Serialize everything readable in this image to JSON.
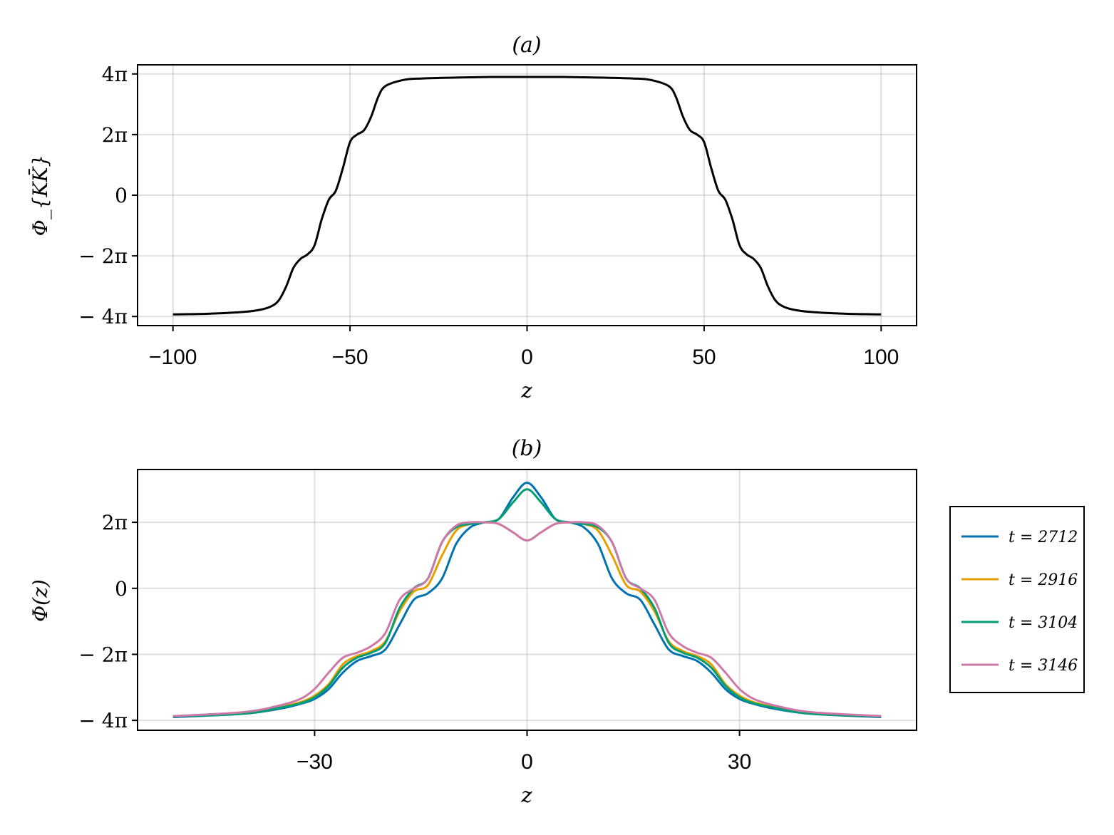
{
  "chart_data": [
    {
      "type": "line",
      "title": "(a)",
      "xlabel": "z",
      "ylabel": "Φ_{KK̄}",
      "xlim": [
        -110,
        110
      ],
      "ylim": [
        -4.3,
        4.3
      ],
      "ylim_unit": "π",
      "x_ticks": [
        {
          "value": -100,
          "label": "−100"
        },
        {
          "value": -50,
          "label": "−50"
        },
        {
          "value": 0,
          "label": "0"
        },
        {
          "value": 50,
          "label": "50"
        },
        {
          "value": 100,
          "label": "100"
        }
      ],
      "y_ticks": [
        {
          "value": 4,
          "label": "4π"
        },
        {
          "value": 2,
          "label": "2π"
        },
        {
          "value": 0,
          "label": "0"
        },
        {
          "value": -2,
          "label": "− 2π"
        },
        {
          "value": -4,
          "label": "− 4π"
        }
      ],
      "grid": true,
      "series": [
        {
          "color": "#000000",
          "x": [
            -100,
            -90,
            -80,
            -75,
            -72,
            -70,
            -68,
            -66,
            -64,
            -62,
            -60,
            -58,
            -56,
            -54,
            -52,
            -50,
            -48,
            -46,
            -44,
            -42,
            -40,
            -35,
            -30,
            -20,
            -10,
            0,
            10,
            20,
            30,
            35,
            40,
            42,
            44,
            46,
            48,
            50,
            52,
            54,
            56,
            58,
            60,
            62,
            64,
            66,
            68,
            70,
            72,
            75,
            80,
            90,
            100
          ],
          "y": [
            -3.93,
            -3.91,
            -3.85,
            -3.77,
            -3.65,
            -3.45,
            -3.0,
            -2.4,
            -2.1,
            -1.95,
            -1.65,
            -0.8,
            -0.15,
            0.15,
            0.9,
            1.75,
            2.0,
            2.15,
            2.6,
            3.25,
            3.6,
            3.8,
            3.85,
            3.88,
            3.9,
            3.9,
            3.9,
            3.88,
            3.85,
            3.8,
            3.6,
            3.25,
            2.6,
            2.15,
            2.0,
            1.75,
            0.9,
            0.15,
            -0.15,
            -0.8,
            -1.65,
            -1.95,
            -2.1,
            -2.4,
            -3.0,
            -3.45,
            -3.65,
            -3.77,
            -3.85,
            -3.91,
            -3.93
          ]
        }
      ]
    },
    {
      "type": "line",
      "title": "(b)",
      "xlabel": "z",
      "ylabel": "Φ(z)",
      "xlim": [
        -55,
        55
      ],
      "ylim": [
        -4.3,
        3.6
      ],
      "ylim_unit": "π",
      "x_ticks": [
        {
          "value": -30,
          "label": "−30"
        },
        {
          "value": 0,
          "label": "0"
        },
        {
          "value": 30,
          "label": "30"
        }
      ],
      "y_ticks": [
        {
          "value": 2,
          "label": "2π"
        },
        {
          "value": 0,
          "label": "0"
        },
        {
          "value": -2,
          "label": "− 2π"
        },
        {
          "value": -4,
          "label": "− 4π"
        }
      ],
      "grid": true,
      "legend": "right",
      "series": [
        {
          "name": "t = 2712",
          "color": "#0072B2",
          "x": [
            -50,
            -40,
            -35,
            -32,
            -30,
            -28,
            -26,
            -24,
            -22,
            -20,
            -18,
            -16,
            -14,
            -12,
            -10,
            -8,
            -6,
            -4,
            -2,
            0,
            2,
            4,
            6,
            8,
            10,
            12,
            14,
            16,
            18,
            20,
            22,
            24,
            26,
            28,
            30,
            32,
            35,
            40,
            50
          ],
          "y": [
            -3.9,
            -3.8,
            -3.65,
            -3.5,
            -3.35,
            -3.05,
            -2.55,
            -2.2,
            -2.05,
            -1.85,
            -1.1,
            -0.35,
            -0.15,
            0.3,
            1.35,
            1.85,
            2.0,
            2.1,
            2.75,
            3.2,
            2.75,
            2.1,
            2.0,
            1.85,
            1.35,
            0.3,
            -0.15,
            -0.35,
            -1.1,
            -1.85,
            -2.05,
            -2.2,
            -2.55,
            -3.05,
            -3.35,
            -3.5,
            -3.65,
            -3.8,
            -3.9
          ]
        },
        {
          "name": "t = 2916",
          "color": "#E69F00",
          "x": [
            -50,
            -40,
            -35,
            -32,
            -30,
            -28,
            -26,
            -24,
            -22,
            -20,
            -18,
            -16,
            -14,
            -12,
            -10,
            -8,
            -6,
            -4,
            -2,
            0,
            2,
            4,
            6,
            8,
            10,
            12,
            14,
            16,
            18,
            20,
            22,
            24,
            26,
            28,
            30,
            32,
            35,
            40,
            50
          ],
          "y": [
            -3.88,
            -3.78,
            -3.6,
            -3.45,
            -3.25,
            -2.9,
            -2.3,
            -2.05,
            -1.9,
            -1.6,
            -0.7,
            -0.1,
            0.1,
            1.0,
            1.75,
            1.95,
            2.0,
            1.95,
            1.7,
            1.45,
            1.7,
            1.95,
            2.0,
            1.95,
            1.75,
            1.0,
            0.1,
            -0.1,
            -0.7,
            -1.6,
            -1.9,
            -2.05,
            -2.3,
            -2.9,
            -3.25,
            -3.45,
            -3.6,
            -3.78,
            -3.88
          ]
        },
        {
          "name": "t = 3104",
          "color": "#009E73",
          "x": [
            -50,
            -40,
            -35,
            -32,
            -30,
            -28,
            -26,
            -24,
            -22,
            -20,
            -18,
            -16,
            -14,
            -12,
            -10,
            -8,
            -6,
            -4,
            -2,
            0,
            2,
            4,
            6,
            8,
            10,
            12,
            14,
            16,
            18,
            20,
            22,
            24,
            26,
            28,
            30,
            32,
            35,
            40,
            50
          ],
          "y": [
            -3.88,
            -3.8,
            -3.62,
            -3.48,
            -3.3,
            -2.95,
            -2.4,
            -2.1,
            -1.95,
            -1.65,
            -0.6,
            0.0,
            0.3,
            1.4,
            1.85,
            1.95,
            2.0,
            2.1,
            2.6,
            3.0,
            2.6,
            2.1,
            2.0,
            1.95,
            1.85,
            1.4,
            0.3,
            0.0,
            -0.6,
            -1.65,
            -1.95,
            -2.1,
            -2.4,
            -2.95,
            -3.3,
            -3.48,
            -3.62,
            -3.8,
            -3.88
          ]
        },
        {
          "name": "t = 3146",
          "color": "#CC79A7",
          "x": [
            -50,
            -40,
            -35,
            -32,
            -30,
            -28,
            -26,
            -24,
            -22,
            -20,
            -18,
            -16,
            -14,
            -12,
            -10,
            -8,
            -6,
            -4,
            -2,
            0,
            2,
            4,
            6,
            8,
            10,
            12,
            14,
            16,
            18,
            20,
            22,
            24,
            26,
            28,
            30,
            32,
            35,
            40,
            50
          ],
          "y": [
            -3.87,
            -3.75,
            -3.55,
            -3.35,
            -3.05,
            -2.55,
            -2.1,
            -1.95,
            -1.75,
            -1.35,
            -0.35,
            0.0,
            0.3,
            1.4,
            1.9,
            2.0,
            2.0,
            1.95,
            1.7,
            1.45,
            1.7,
            1.95,
            2.0,
            2.0,
            1.9,
            1.4,
            0.3,
            0.0,
            -0.35,
            -1.35,
            -1.75,
            -1.95,
            -2.1,
            -2.55,
            -3.05,
            -3.35,
            -3.55,
            -3.75,
            -3.87
          ]
        }
      ]
    }
  ]
}
